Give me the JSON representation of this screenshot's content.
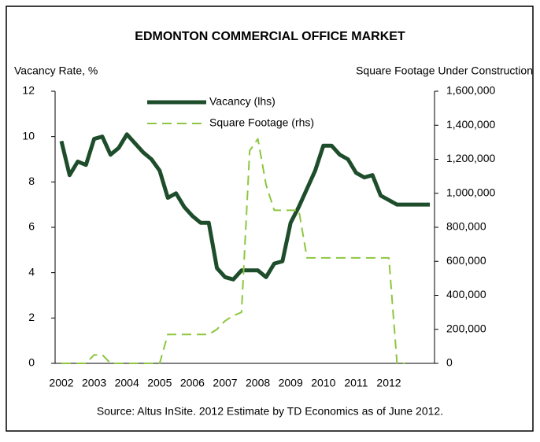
{
  "chart_data": {
    "type": "line",
    "title": "EDMONTON COMMERCIAL OFFICE MARKET",
    "y_label": "Vacancy Rate, %",
    "y2_label": "Square Footage Under Construction",
    "source": "Source: Altus InSite.  2012 Estimate by TD Economics as of June 2012.",
    "categories": [
      "2002",
      null,
      null,
      null,
      "2003",
      null,
      null,
      null,
      "2004",
      null,
      null,
      null,
      "2005",
      null,
      null,
      null,
      "2006",
      null,
      null,
      null,
      "2007",
      null,
      null,
      null,
      "2008",
      null,
      null,
      null,
      "2009",
      null,
      null,
      null,
      "2010",
      null,
      null,
      null,
      "2011",
      null,
      null,
      null,
      "2012",
      null,
      null,
      null,
      null,
      null
    ],
    "series": [
      {
        "name": "Vacancy (lhs)",
        "color": "#1e4d2b",
        "dash": false,
        "axis": "y",
        "values": [
          9.8,
          8.3,
          8.9,
          8.75,
          9.9,
          10.0,
          9.2,
          9.5,
          10.1,
          9.7,
          9.3,
          9.0,
          8.5,
          7.3,
          7.5,
          6.9,
          6.5,
          6.2,
          6.2,
          4.2,
          3.8,
          3.7,
          4.1,
          4.1,
          4.1,
          3.8,
          4.4,
          4.5,
          6.2,
          6.9,
          7.7,
          8.5,
          9.6,
          9.6,
          9.2,
          9.0,
          8.4,
          8.2,
          8.3,
          7.4,
          7.2,
          7.0,
          7.0,
          7.0,
          7.0,
          7.0
        ]
      },
      {
        "name": "Square Footage (rhs)",
        "color": "#8dc63f",
        "dash": true,
        "axis": "y2",
        "values": [
          0,
          0,
          0,
          0,
          50000,
          50000,
          0,
          0,
          0,
          0,
          0,
          0,
          0,
          170000,
          170000,
          170000,
          170000,
          170000,
          170000,
          200000,
          250000,
          280000,
          300000,
          1250000,
          1320000,
          1050000,
          900000,
          900000,
          900000,
          900000,
          620000,
          620000,
          620000,
          620000,
          620000,
          620000,
          620000,
          620000,
          620000,
          620000,
          620000,
          0,
          0,
          null,
          null,
          null
        ]
      }
    ],
    "ylim": [
      0,
      12
    ],
    "yticks": [
      0,
      2,
      4,
      6,
      8,
      10,
      12
    ],
    "y2lim": [
      0,
      1600000
    ],
    "y2ticks": [
      0,
      {
        "value": 200000,
        "label": "200,000"
      },
      {
        "value": 400000,
        "label": "400,000"
      },
      {
        "value": 600000,
        "label": "600,000"
      },
      {
        "value": 800000,
        "label": "800,000"
      },
      {
        "value": 1000000,
        "label": "1,000,000"
      },
      {
        "value": 1200000,
        "label": "1,200,000"
      },
      {
        "value": 1400000,
        "label": "1,400,000"
      },
      {
        "value": 1600000,
        "label": "1,600,000"
      }
    ]
  }
}
